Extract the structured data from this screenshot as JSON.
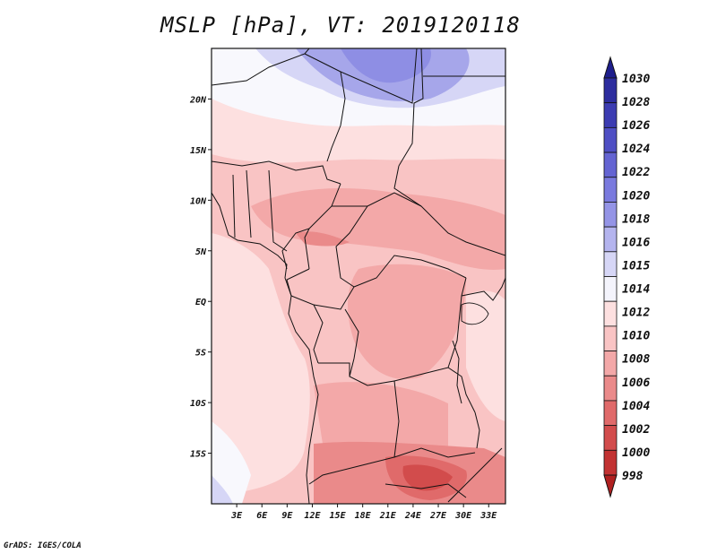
{
  "title": "MSLP [hPa], VT: 2019120118",
  "footer": "GrADS: IGES/COLA",
  "map": {
    "lon_range": [
      0,
      35
    ],
    "lat_range": [
      -20,
      25
    ],
    "lon_ticks": [
      "3E",
      "6E",
      "9E",
      "12E",
      "15E",
      "18E",
      "21E",
      "24E",
      "27E",
      "30E",
      "33E"
    ],
    "lat_ticks": [
      "20N",
      "15N",
      "10N",
      "5N",
      "EQ",
      "5S",
      "10S",
      "15S"
    ]
  },
  "colorbar": {
    "labels": [
      "1030",
      "1028",
      "1026",
      "1024",
      "1022",
      "1020",
      "1018",
      "1016",
      "1015",
      "1014",
      "1012",
      "1010",
      "1008",
      "1006",
      "1004",
      "1002",
      "1000",
      "998"
    ],
    "colors": [
      "#1e1e8c",
      "#2d2d9e",
      "#3c3cb2",
      "#4f4fc4",
      "#6464d2",
      "#7a7ade",
      "#9494e6",
      "#b4b4ee",
      "#d6d6f6",
      "#f4f4fc",
      "#fde0e0",
      "#f9c4c4",
      "#f3a8a8",
      "#ea8a8a",
      "#e06a6a",
      "#d24c4c",
      "#c23232",
      "#b02020"
    ]
  }
}
